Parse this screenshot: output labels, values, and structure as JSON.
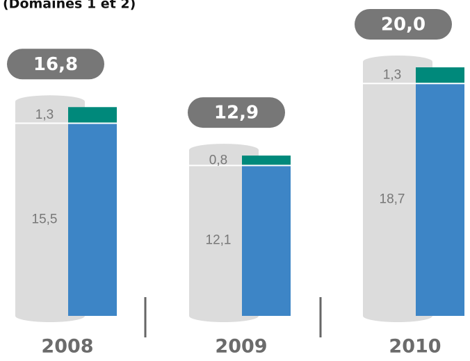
{
  "chart_data": {
    "type": "bar",
    "stacked": true,
    "subtitle": "(Domaines 1 et 2)",
    "categories": [
      "2008",
      "2009",
      "2010"
    ],
    "series": [
      {
        "name": null,
        "color": "#3d85c6",
        "values": [
          15.5,
          12.1,
          18.7
        ],
        "value_labels": [
          "15,5",
          "12,1",
          "18,7"
        ]
      },
      {
        "name": null,
        "color": "#00897b",
        "values": [
          1.3,
          0.8,
          1.3
        ],
        "value_labels": [
          "1,3",
          "0,8",
          "1,3"
        ]
      }
    ],
    "totals": {
      "values": [
        16.8,
        12.9,
        20.0
      ],
      "value_labels": [
        "16,8",
        "12,9",
        "20,0"
      ]
    },
    "ylim": [
      0,
      20
    ]
  }
}
